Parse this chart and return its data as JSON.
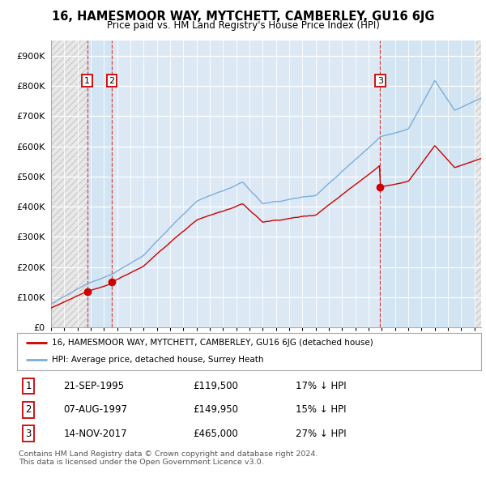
{
  "title": "16, HAMESMOOR WAY, MYTCHETT, CAMBERLEY, GU16 6JG",
  "subtitle": "Price paid vs. HM Land Registry's House Price Index (HPI)",
  "ylim": [
    0,
    950000
  ],
  "xlim_start": 1993.0,
  "xlim_end": 2025.5,
  "yticks": [
    0,
    100000,
    200000,
    300000,
    400000,
    500000,
    600000,
    700000,
    800000,
    900000
  ],
  "ytick_labels": [
    "£0",
    "£100K",
    "£200K",
    "£300K",
    "£400K",
    "£500K",
    "£600K",
    "£700K",
    "£800K",
    "£900K"
  ],
  "sales": [
    {
      "date_num": 1995.73,
      "price": 119500,
      "label": "1"
    },
    {
      "date_num": 1997.6,
      "price": 149950,
      "label": "2"
    },
    {
      "date_num": 2017.87,
      "price": 465000,
      "label": "3"
    }
  ],
  "sale_color": "#cc0000",
  "hpi_color": "#7aaedc",
  "legend_entries": [
    "16, HAMESMOOR WAY, MYTCHETT, CAMBERLEY, GU16 6JG (detached house)",
    "HPI: Average price, detached house, Surrey Heath"
  ],
  "table_rows": [
    {
      "num": "1",
      "date": "21-SEP-1995",
      "price": "£119,500",
      "hpi": "17% ↓ HPI"
    },
    {
      "num": "2",
      "date": "07-AUG-1997",
      "price": "£149,950",
      "hpi": "15% ↓ HPI"
    },
    {
      "num": "3",
      "date": "14-NOV-2017",
      "price": "£465,000",
      "hpi": "27% ↓ HPI"
    }
  ],
  "footnote": "Contains HM Land Registry data © Crown copyright and database right 2024.\nThis data is licensed under the Open Government Licence v3.0.",
  "bg_color": "#dce9f5",
  "hatch_bg_color": "#e8e8e8",
  "grid_color": "#ffffff"
}
